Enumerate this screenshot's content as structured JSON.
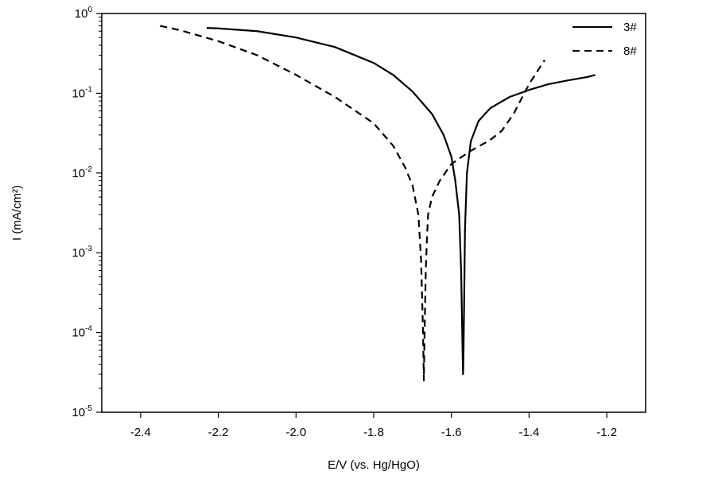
{
  "chart_data": {
    "type": "line",
    "title": "",
    "xlabel": "E/V (vs. Hg/HgO)",
    "ylabel": "I (mA/cm²)",
    "xlim": [
      -2.5,
      -1.1
    ],
    "ylim": [
      1e-05,
      1
    ],
    "yscale": "log",
    "grid": false,
    "legend_position": "top-right",
    "x_ticks": [
      {
        "value": -2.4,
        "label": "-2.4"
      },
      {
        "value": -2.2,
        "label": "-2.2"
      },
      {
        "value": -2.0,
        "label": "-2.0"
      },
      {
        "value": -1.8,
        "label": "-1.8"
      },
      {
        "value": -1.6,
        "label": "-1.6"
      },
      {
        "value": -1.4,
        "label": "-1.4"
      },
      {
        "value": -1.2,
        "label": "-1.2"
      }
    ],
    "y_ticks": [
      {
        "value": 1,
        "base": "10",
        "exp": "0"
      },
      {
        "value": 0.1,
        "base": "10",
        "exp": "-1"
      },
      {
        "value": 0.01,
        "base": "10",
        "exp": "-2"
      },
      {
        "value": 0.001,
        "base": "10",
        "exp": "-3"
      },
      {
        "value": 0.0001,
        "base": "10",
        "exp": "-4"
      },
      {
        "value": 1e-05,
        "base": "10",
        "exp": "-5"
      }
    ],
    "series": [
      {
        "name": "3#",
        "style": "solid",
        "color": "#000000",
        "x": [
          -2.23,
          -2.2,
          -2.1,
          -2.0,
          -1.9,
          -1.8,
          -1.75,
          -1.7,
          -1.65,
          -1.62,
          -1.6,
          -1.59,
          -1.58,
          -1.575,
          -1.571,
          -1.57,
          -1.569,
          -1.567,
          -1.565,
          -1.56,
          -1.55,
          -1.53,
          -1.5,
          -1.45,
          -1.4,
          -1.35,
          -1.3,
          -1.25,
          -1.23
        ],
        "y": [
          0.66,
          0.65,
          0.6,
          0.5,
          0.38,
          0.24,
          0.17,
          0.105,
          0.055,
          0.03,
          0.016,
          0.008,
          0.003,
          0.0006,
          5e-05,
          3e-05,
          5e-05,
          0.0003,
          0.002,
          0.01,
          0.025,
          0.045,
          0.065,
          0.09,
          0.11,
          0.13,
          0.145,
          0.16,
          0.17
        ]
      },
      {
        "name": "8#",
        "style": "dashed",
        "color": "#000000",
        "x": [
          -2.35,
          -2.3,
          -2.2,
          -2.1,
          -2.0,
          -1.9,
          -1.8,
          -1.75,
          -1.72,
          -1.7,
          -1.685,
          -1.678,
          -1.673,
          -1.671,
          -1.669,
          -1.666,
          -1.663,
          -1.66,
          -1.65,
          -1.63,
          -1.6,
          -1.55,
          -1.5,
          -1.47,
          -1.44,
          -1.42,
          -1.4,
          -1.37,
          -1.36
        ],
        "y": [
          0.7,
          0.62,
          0.45,
          0.3,
          0.17,
          0.09,
          0.042,
          0.022,
          0.012,
          0.007,
          0.003,
          0.0008,
          0.0001,
          2.5e-05,
          0.0001,
          0.0006,
          0.0015,
          0.003,
          0.005,
          0.008,
          0.013,
          0.019,
          0.026,
          0.034,
          0.055,
          0.085,
          0.13,
          0.22,
          0.26
        ]
      }
    ]
  }
}
